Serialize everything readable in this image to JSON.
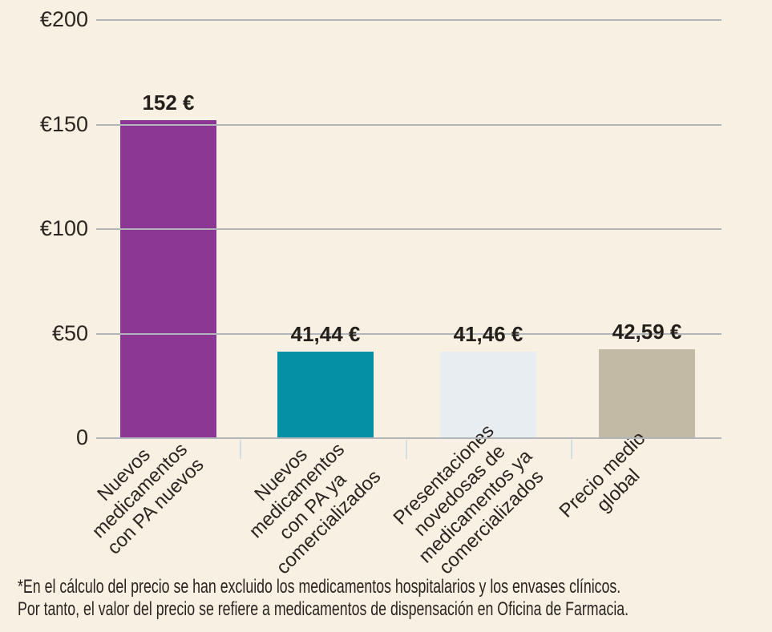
{
  "chart_data": {
    "type": "bar",
    "title": "",
    "xlabel": "",
    "ylabel": "",
    "categories": [
      "Nuevos medicamentos con PA nuevos",
      "Nuevos medicamentos con PA ya comercializados",
      "Presentaciones novedosas de medicamentos ya comercializados",
      "Precio medio global"
    ],
    "category_label_lines": [
      [
        "Nuevos",
        "medicamentos",
        "con PA nuevos"
      ],
      [
        "Nuevos",
        "medicamentos",
        "con PA ya",
        "comercializados"
      ],
      [
        "Presentaciones",
        "novedosas de",
        "medicamentos ya",
        "comercializados"
      ],
      [
        "Precio medio",
        "global"
      ]
    ],
    "values": [
      152,
      41.44,
      41.46,
      42.59
    ],
    "value_labels": [
      "152 €",
      "41,44 €",
      "41,46 €",
      "42,59 €"
    ],
    "bar_colors": [
      "#8c3793",
      "#0590a6",
      "#e8edf1",
      "#c3baa6"
    ],
    "y_ticks": [
      {
        "label": "€200",
        "value": 200
      },
      {
        "label": "€150",
        "value": 150
      },
      {
        "label": "€100",
        "value": 100
      },
      {
        "label": "€50",
        "value": 50
      },
      {
        "label": "0",
        "value": 0
      }
    ],
    "ylim": [
      0,
      200
    ],
    "grid": true,
    "legend": false
  },
  "footnote": {
    "line1": "*En el cálculo del precio se han excluido los medicamentos hospitalarios y los envases clínicos.",
    "line2": "Por tanto, el valor del precio se refiere a medicamentos de dispensación en Oficina de Farmacia."
  },
  "colors": {
    "background": "#f7f0e3",
    "gridline": "#b2b5ba",
    "separator_tick": "#cfdfe5",
    "text": "#2b2521",
    "bar_purple": "#8c3793",
    "bar_teal": "#0590a6",
    "bar_light": "#e8edf1",
    "bar_tan": "#c3baa6"
  }
}
